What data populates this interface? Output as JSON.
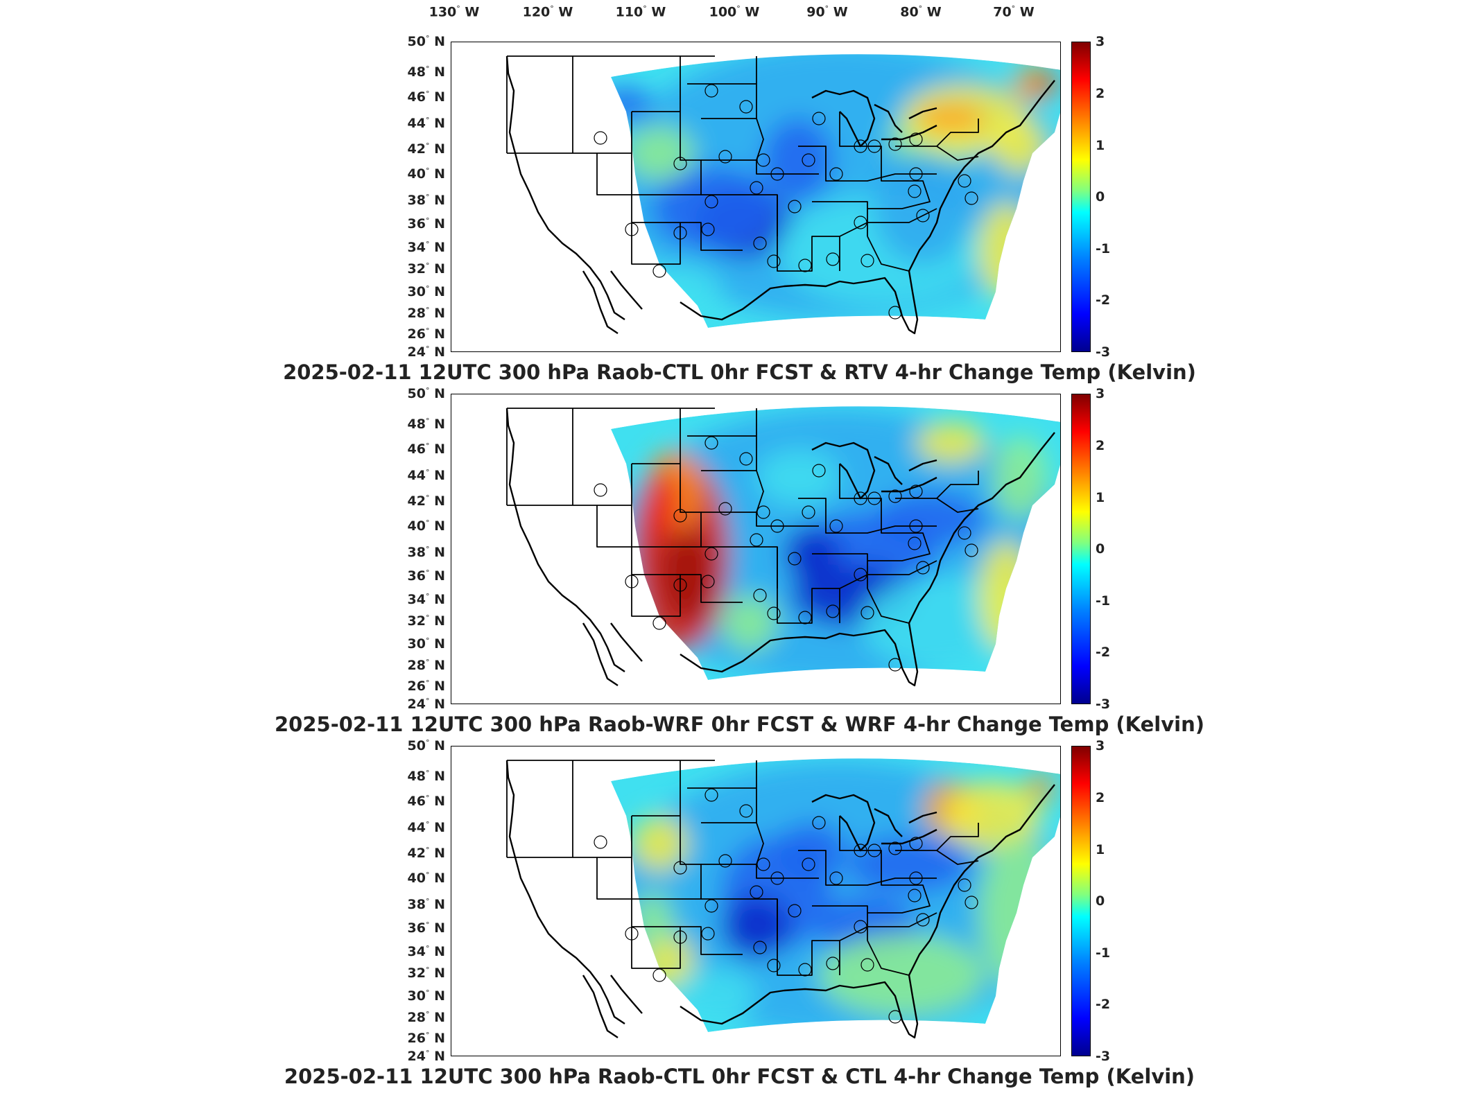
{
  "lon_labels": [
    "130",
    "120",
    "110",
    "100",
    "90",
    "80",
    "70"
  ],
  "lon_suffix": "W",
  "lat_labels": [
    "50",
    "48",
    "46",
    "44",
    "42",
    "40",
    "38",
    "36",
    "34",
    "32",
    "30",
    "28",
    "26",
    "24"
  ],
  "lat_suffix": "N",
  "colorbar": {
    "ticks": [
      "3",
      "2",
      "1",
      "0",
      "-1",
      "-2",
      "-3"
    ],
    "range": [
      -3,
      3
    ],
    "colormap": "jet"
  },
  "panels": [
    {
      "title": "2025-02-11 12UTC 300 hPa Raob-CTL 0hr FCST & RTV 4-hr Change Temp (Kelvin)"
    },
    {
      "title": "2025-02-11 12UTC 300 hPa Raob-WRF 0hr FCST & WRF 4-hr Change Temp (Kelvin)"
    },
    {
      "title": "2025-02-11 12UTC 300 hPa Raob-CTL 0hr FCST & CTL 4-hr Change Temp (Kelvin)"
    }
  ],
  "colors": {
    "field_base": "#33ccee",
    "cold": "#1040e0",
    "warm": "#f03010",
    "neutral": "#a0f080"
  }
}
